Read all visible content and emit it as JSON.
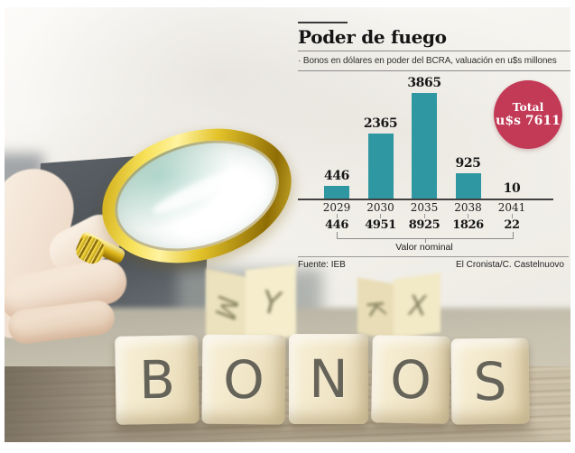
{
  "chart_data": {
    "type": "bar",
    "title": "Poder de fuego",
    "subtitle": "· Bonos en dólares en poder del BCRA, valuación en u$s millones",
    "categories": [
      "2029",
      "2030",
      "2035",
      "2038",
      "2041"
    ],
    "values": [
      446,
      2365,
      3865,
      925,
      10
    ],
    "series": [
      {
        "name": "Valuación u$s millones",
        "values": [
          446,
          2365,
          3865,
          925,
          10
        ]
      },
      {
        "name": "Valor nominal",
        "values": [
          446,
          4951,
          8925,
          1826,
          22
        ]
      }
    ],
    "nominal_axis_label": "Valor nominal",
    "total_badge": {
      "line1": "Total",
      "line2": "u$s 7611"
    },
    "xlabel": "",
    "ylabel": "",
    "ylim": [
      0,
      4000
    ],
    "grid": false,
    "legend_position": "none",
    "colors": {
      "bar": "#2e97a1",
      "badge": "#c23a56"
    },
    "source": "Fuente: IEB",
    "credit": "El Cronista/C. Castelnuovo"
  },
  "photo": {
    "blocks_word": "BONOS",
    "block_letters": [
      "B",
      "O",
      "N",
      "O",
      "S"
    ],
    "back_block_letters": [
      "M",
      "Y",
      "K",
      "X"
    ]
  }
}
